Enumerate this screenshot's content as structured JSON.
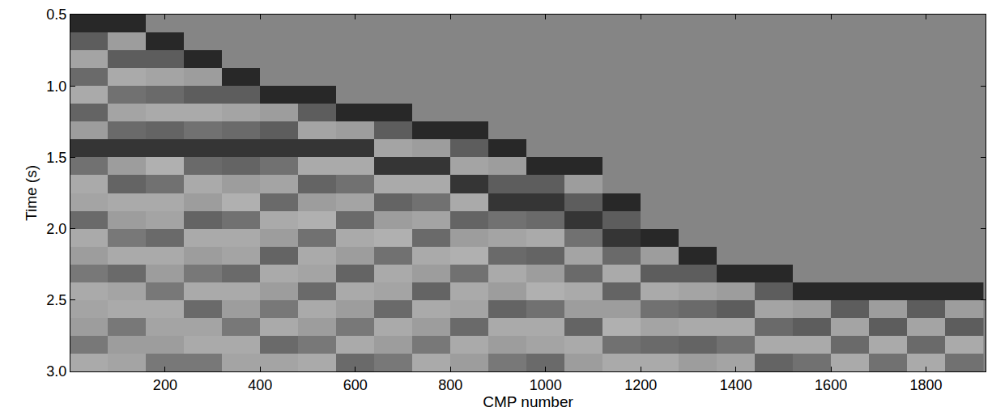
{
  "chart_data": {
    "type": "heatmap",
    "x_label": "CMP number",
    "y_label": "Time (s)",
    "x": [
      40,
      120,
      200,
      280,
      360,
      440,
      520,
      600,
      680,
      760,
      840,
      920,
      1000,
      1080,
      1160,
      1240,
      1320,
      1400,
      1480,
      1560,
      1640,
      1720,
      1800,
      1880
    ],
    "y": [
      0.5625,
      0.6875,
      0.8125,
      0.9375,
      1.0625,
      1.1875,
      1.3125,
      1.4375,
      1.5625,
      1.6875,
      1.8125,
      1.9375,
      2.0625,
      2.1875,
      2.3125,
      2.4375,
      2.5625,
      2.6875,
      2.8125,
      2.9375
    ],
    "cells_by_x": [
      [
        -0.7,
        -0.3,
        0.25,
        -0.2,
        0.3,
        -0.25,
        0.2,
        -0.6,
        -0.15,
        0.3,
        0.25,
        -0.2,
        0.3,
        0.2,
        -0.1,
        0.3,
        0.25,
        0.2,
        -0.1,
        0.3
      ],
      [
        -0.7,
        0.2,
        -0.3,
        0.3,
        -0.15,
        0.25,
        -0.2,
        -0.6,
        0.2,
        -0.25,
        0.3,
        0.2,
        -0.1,
        0.3,
        -0.2,
        0.25,
        0.3,
        -0.1,
        0.2,
        0.25
      ],
      [
        0,
        -0.7,
        -0.3,
        0.25,
        -0.2,
        0.3,
        -0.25,
        -0.6,
        0.35,
        -0.15,
        0.3,
        0.25,
        -0.2,
        0.3,
        0.2,
        -0.1,
        0.3,
        0.25,
        0.2,
        -0.1
      ],
      [
        0,
        0,
        -0.7,
        0.2,
        -0.3,
        0.3,
        -0.15,
        -0.6,
        -0.2,
        0.3,
        0.2,
        -0.25,
        0.3,
        0.2,
        -0.1,
        0.3,
        -0.2,
        0.25,
        0.3,
        -0.1
      ],
      [
        0,
        0,
        0,
        -0.7,
        -0.3,
        0.25,
        -0.2,
        -0.6,
        -0.25,
        0.2,
        0.35,
        -0.15,
        0.3,
        0.25,
        -0.2,
        0.3,
        0.2,
        -0.1,
        0.3,
        0.25
      ],
      [
        0,
        0,
        0,
        0,
        -0.7,
        0.2,
        -0.3,
        -0.6,
        -0.15,
        0.25,
        -0.2,
        0.3,
        0.2,
        -0.25,
        0.3,
        0.2,
        -0.1,
        0.3,
        -0.2,
        0.25
      ],
      [
        0,
        0,
        0,
        0,
        -0.7,
        -0.3,
        0.25,
        -0.6,
        0.3,
        -0.25,
        0.2,
        0.35,
        -0.15,
        0.3,
        0.25,
        -0.2,
        0.3,
        0.2,
        -0.1,
        0.3
      ],
      [
        0,
        0,
        0,
        0,
        0,
        -0.7,
        0.2,
        -0.6,
        0.3,
        -0.15,
        0.25,
        -0.2,
        0.3,
        0.2,
        -0.25,
        0.3,
        0.2,
        -0.1,
        0.3,
        -0.2
      ],
      [
        0,
        0,
        0,
        0,
        0,
        -0.7,
        -0.3,
        0.25,
        -0.6,
        0.3,
        -0.25,
        0.2,
        0.35,
        -0.15,
        0.3,
        0.25,
        -0.2,
        0.3,
        0.2,
        -0.1
      ],
      [
        0,
        0,
        0,
        0,
        0,
        0,
        -0.7,
        0.2,
        -0.6,
        0.3,
        -0.15,
        0.25,
        -0.2,
        0.3,
        0.2,
        -0.25,
        0.3,
        0.2,
        -0.1,
        0.3
      ],
      [
        0,
        0,
        0,
        0,
        0,
        0,
        -0.7,
        -0.3,
        0.25,
        -0.6,
        0.3,
        -0.25,
        0.2,
        0.35,
        -0.15,
        0.3,
        0.25,
        -0.2,
        0.3,
        0.2
      ],
      [
        0,
        0,
        0,
        0,
        0,
        0,
        0,
        -0.7,
        0.2,
        -0.3,
        -0.6,
        -0.15,
        0.25,
        -0.2,
        0.3,
        0.2,
        -0.25,
        0.3,
        0.2,
        -0.1
      ],
      [
        0,
        0,
        0,
        0,
        0,
        0,
        0,
        0,
        -0.7,
        -0.3,
        -0.6,
        -0.2,
        0.3,
        -0.25,
        0.2,
        0.35,
        -0.15,
        0.3,
        0.25,
        -0.2
      ],
      [
        0,
        0,
        0,
        0,
        0,
        0,
        0,
        0,
        -0.7,
        0.2,
        -0.3,
        -0.6,
        -0.15,
        0.25,
        -0.2,
        0.3,
        0.2,
        -0.25,
        0.3,
        0.2
      ],
      [
        0,
        0,
        0,
        0,
        0,
        0,
        0,
        0,
        0,
        0,
        -0.7,
        -0.3,
        -0.6,
        -0.2,
        0.3,
        -0.25,
        0.2,
        0.35,
        -0.15,
        0.3
      ],
      [
        0,
        0,
        0,
        0,
        0,
        0,
        0,
        0,
        0,
        0,
        0,
        0,
        -0.7,
        0.2,
        -0.3,
        0.3,
        -0.15,
        0.25,
        -0.2,
        0.3
      ],
      [
        0,
        0,
        0,
        0,
        0,
        0,
        0,
        0,
        0,
        0,
        0,
        0,
        0,
        -0.7,
        -0.3,
        0.25,
        -0.2,
        0.3,
        -0.25,
        0.2
      ],
      [
        0,
        0,
        0,
        0,
        0,
        0,
        0,
        0,
        0,
        0,
        0,
        0,
        0,
        0,
        -0.7,
        0.2,
        -0.3,
        0.3,
        -0.15,
        0.25
      ],
      [
        0,
        0,
        0,
        0,
        0,
        0,
        0,
        0,
        0,
        0,
        0,
        0,
        0,
        0,
        -0.7,
        -0.3,
        0.25,
        -0.2,
        0.3,
        -0.25
      ],
      [
        0,
        0,
        0,
        0,
        0,
        0,
        0,
        0,
        0,
        0,
        0,
        0,
        0,
        0,
        0,
        -0.7,
        0.2,
        -0.3,
        0.3,
        -0.15
      ],
      [
        0,
        0,
        0,
        0,
        0,
        0,
        0,
        0,
        0,
        0,
        0,
        0,
        0,
        0,
        0,
        -0.7,
        -0.3,
        0.25,
        -0.2,
        0.3
      ],
      [
        0,
        0,
        0,
        0,
        0,
        0,
        0,
        0,
        0,
        0,
        0,
        0,
        0,
        0,
        0,
        -0.7,
        0.2,
        -0.3,
        0.3,
        -0.15
      ],
      [
        0,
        0,
        0,
        0,
        0,
        0,
        0,
        0,
        0,
        0,
        0,
        0,
        0,
        0,
        0,
        -0.7,
        -0.3,
        0.25,
        -0.2,
        0.3
      ],
      [
        0,
        0,
        0,
        0,
        0,
        0,
        0,
        0,
        0,
        0,
        0,
        0,
        0,
        0,
        0,
        -0.7,
        0.2,
        -0.3,
        0.3,
        -0.15
      ]
    ],
    "zlim": [
      -1,
      1
    ],
    "xlim": [
      1,
      1925
    ],
    "xticks": [
      200,
      400,
      600,
      800,
      1000,
      1200,
      1400,
      1600,
      1800
    ],
    "ylim": [
      3.0,
      0.5
    ],
    "yticks": [
      {
        "value": 0.5,
        "label": "0.5"
      },
      {
        "value": 1.0,
        "label": "1.0"
      },
      {
        "value": 1.5,
        "label": "1.5"
      },
      {
        "value": 2.0,
        "label": "2.0"
      },
      {
        "value": 2.5,
        "label": "2.5"
      },
      {
        "value": 3.0,
        "label": "3.0"
      }
    ],
    "grid": false
  }
}
